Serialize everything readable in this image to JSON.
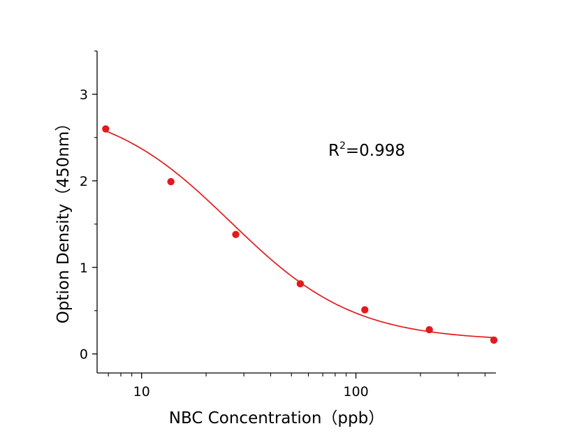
{
  "chart_data": {
    "type": "scatter",
    "title": "",
    "xlabel": "NBC Concentration（ppb）",
    "ylabel": "Option Density（450nm）",
    "x_scale": "log",
    "xlim": [
      6.2,
      450
    ],
    "ylim": [
      -0.22,
      3.5
    ],
    "x_tick_labels": [
      "10",
      "100"
    ],
    "y_tick_labels": [
      "0",
      "1",
      "2",
      "3"
    ],
    "grid": false,
    "series": [
      {
        "kind": "points",
        "color": "#e31a1c",
        "x": [
          6.8,
          13.7,
          27.5,
          55,
          110,
          220,
          440
        ],
        "y": [
          2.6,
          1.99,
          1.38,
          0.81,
          0.51,
          0.28,
          0.16
        ]
      },
      {
        "kind": "fit-curve",
        "color": "#e31a1c",
        "model": {
          "A1": 2.9,
          "A2": 0.15,
          "x0": 26,
          "p": 1.5
        }
      }
    ],
    "annotation": {
      "text": "R",
      "superscript": "2",
      "rest": "=0.998"
    }
  }
}
